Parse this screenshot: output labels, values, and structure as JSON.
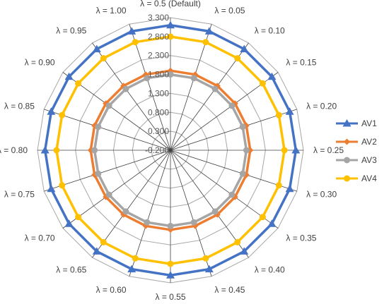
{
  "chart_data": {
    "type": "radar",
    "categories": [
      "λ = 0.5 (Default)",
      "λ = 0.05",
      "λ = 0.10",
      "λ = 0.15",
      "λ = 0.20",
      "λ = 0.25",
      "λ = 0.30",
      "λ = 0.35",
      "λ = 0.40",
      "λ = 0.45",
      "λ = 0.55",
      "λ = 0.60",
      "λ = 0.65",
      "λ = 0.70",
      "λ = 0.75",
      "λ = 0.80",
      "λ = 0.85",
      "λ = 0.90",
      "λ = 0.95",
      "λ = 1.00"
    ],
    "ticks": [
      "-0.200",
      "0.300",
      "0.800",
      "1.300",
      "1.800",
      "2.300",
      "2.800",
      "3.300"
    ],
    "rmin": -0.2,
    "rmax": 3.3,
    "grid": true,
    "legend_position": "right",
    "series": [
      {
        "name": "AV1",
        "color": "#4472C4",
        "marker": "triangle",
        "values": [
          3.1,
          3.1,
          3.1,
          3.1,
          3.1,
          3.1,
          3.1,
          3.1,
          3.1,
          3.1,
          3.1,
          3.1,
          3.1,
          3.1,
          3.1,
          3.1,
          3.1,
          3.1,
          3.1,
          3.1
        ]
      },
      {
        "name": "AV2",
        "color": "#ED7D31",
        "marker": "diamond",
        "values": [
          1.9,
          1.9,
          1.9,
          1.9,
          1.9,
          1.9,
          1.9,
          1.9,
          1.9,
          1.9,
          1.9,
          1.9,
          1.9,
          1.9,
          1.9,
          1.9,
          1.9,
          1.9,
          1.9,
          1.9
        ]
      },
      {
        "name": "AV3",
        "color": "#A5A5A5",
        "marker": "circle",
        "values": [
          1.8,
          1.8,
          1.8,
          1.8,
          1.8,
          1.8,
          1.8,
          1.8,
          1.8,
          1.8,
          1.8,
          1.8,
          1.8,
          1.8,
          1.8,
          1.8,
          1.8,
          1.8,
          1.8,
          1.8
        ]
      },
      {
        "name": "AV4",
        "color": "#FFC000",
        "marker": "circle",
        "values": [
          2.8,
          2.8,
          2.8,
          2.8,
          2.8,
          2.8,
          2.8,
          2.8,
          2.8,
          2.8,
          2.8,
          2.8,
          2.8,
          2.8,
          2.8,
          2.8,
          2.8,
          2.8,
          2.8,
          2.8
        ]
      }
    ]
  }
}
